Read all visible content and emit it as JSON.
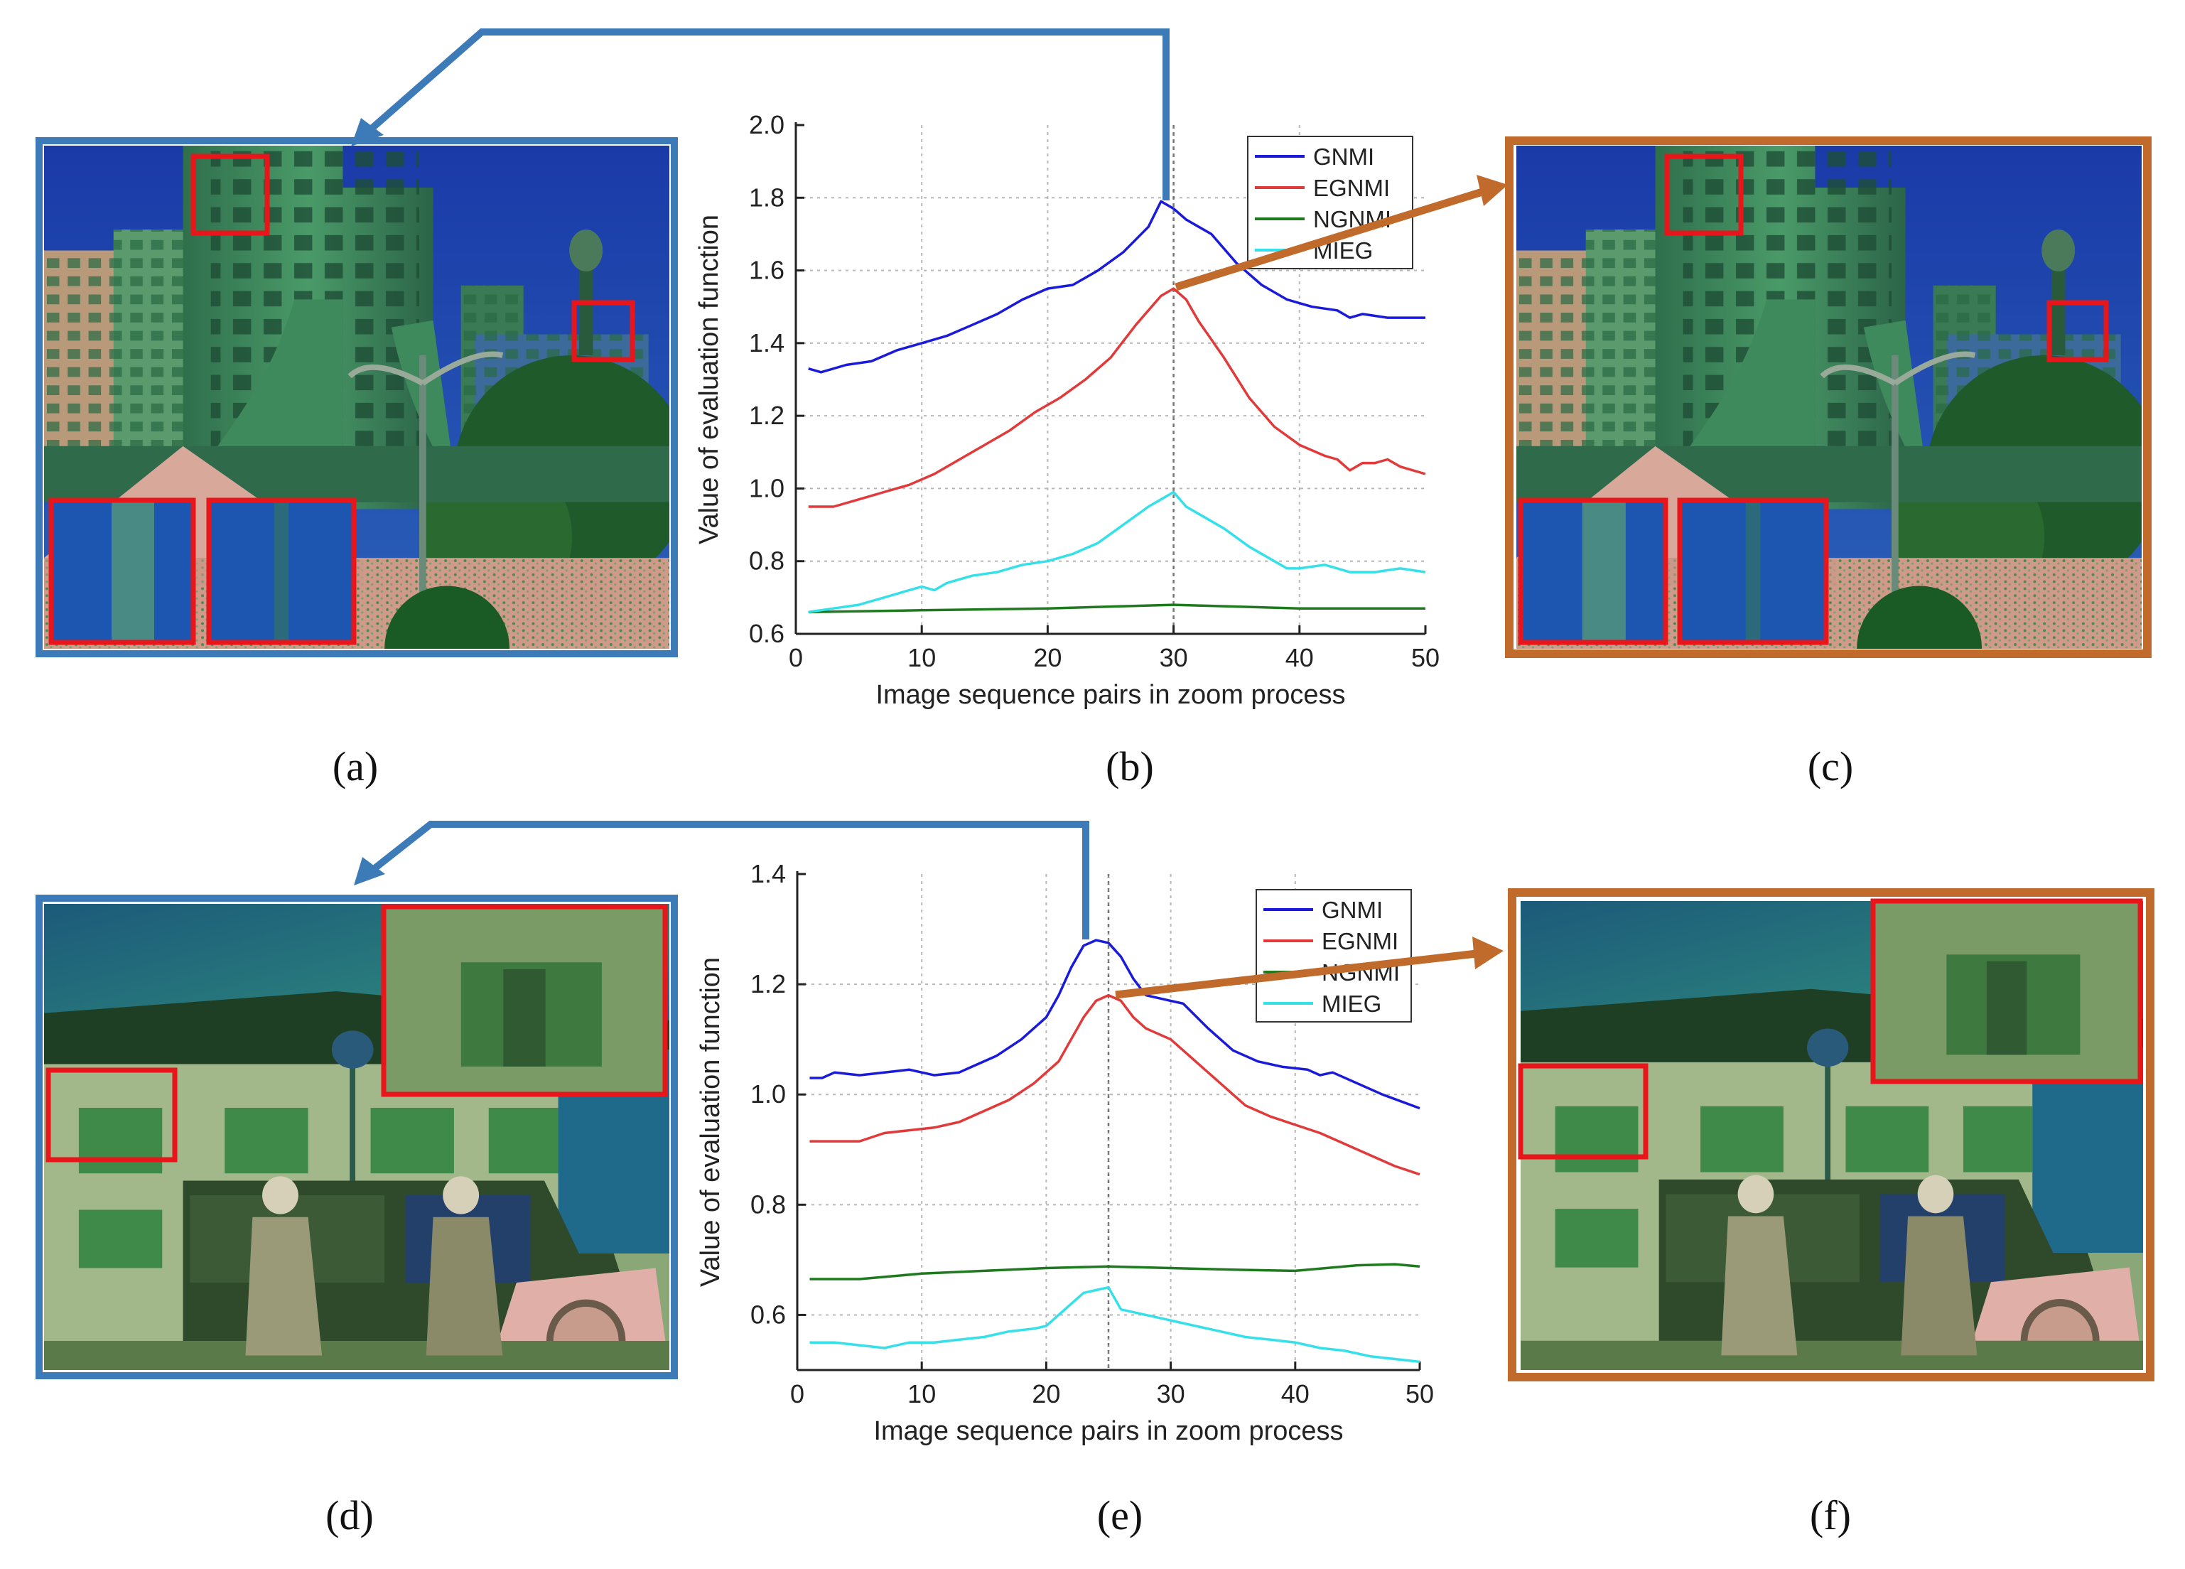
{
  "panels": [
    {
      "id": "a",
      "label": "(a)",
      "kind": "infrared-photo",
      "scene": "building",
      "frame_color": "#3d7ab8"
    },
    {
      "id": "b",
      "label": "(b)",
      "kind": "chart"
    },
    {
      "id": "c",
      "label": "(c)",
      "kind": "infrared-photo",
      "scene": "building",
      "frame_color": "#c06a2b"
    },
    {
      "id": "d",
      "label": "(d)",
      "kind": "infrared-photo",
      "scene": "soldiers",
      "frame_color": "#3d7ab8"
    },
    {
      "id": "e",
      "label": "(e)",
      "kind": "chart"
    },
    {
      "id": "f",
      "label": "(f)",
      "kind": "infrared-photo",
      "scene": "soldiers",
      "frame_color": "#c06a2b"
    }
  ],
  "colors": {
    "blue_frame": "#3d7ab8",
    "orange_frame": "#c06a2b",
    "highlight_box": "#e8151b",
    "series": {
      "GNMI": "#1a1adb",
      "EGNMI": "#e03a3a",
      "NGNMI": "#1f7a1f",
      "MIEG": "#35e0e8"
    }
  },
  "chart_data": [
    {
      "type": "line",
      "panel": "b",
      "xlabel": "Image sequence pairs in zoom process",
      "ylabel": "Value of evaluation function",
      "xlim": [
        0,
        50
      ],
      "ylim": [
        0.6,
        2.0
      ],
      "xticks": [
        0,
        10,
        20,
        30,
        40,
        50
      ],
      "yticks": [
        0.6,
        0.8,
        1.0,
        1.2,
        1.4,
        1.6,
        1.8,
        2.0
      ],
      "grid": true,
      "legend_position": "top-right",
      "marker_x": 30,
      "series": [
        {
          "name": "GNMI",
          "points": [
            [
              1,
              1.33
            ],
            [
              2,
              1.32
            ],
            [
              4,
              1.34
            ],
            [
              6,
              1.35
            ],
            [
              8,
              1.38
            ],
            [
              10,
              1.4
            ],
            [
              12,
              1.42
            ],
            [
              14,
              1.45
            ],
            [
              16,
              1.48
            ],
            [
              18,
              1.52
            ],
            [
              20,
              1.55
            ],
            [
              22,
              1.56
            ],
            [
              24,
              1.6
            ],
            [
              26,
              1.65
            ],
            [
              28,
              1.72
            ],
            [
              29,
              1.79
            ],
            [
              30,
              1.77
            ],
            [
              31,
              1.74
            ],
            [
              32,
              1.72
            ],
            [
              33,
              1.7
            ],
            [
              35,
              1.62
            ],
            [
              37,
              1.56
            ],
            [
              39,
              1.52
            ],
            [
              41,
              1.5
            ],
            [
              43,
              1.49
            ],
            [
              44,
              1.47
            ],
            [
              45,
              1.48
            ],
            [
              47,
              1.47
            ],
            [
              50,
              1.47
            ]
          ]
        },
        {
          "name": "EGNMI",
          "points": [
            [
              1,
              0.95
            ],
            [
              3,
              0.95
            ],
            [
              5,
              0.97
            ],
            [
              7,
              0.99
            ],
            [
              9,
              1.01
            ],
            [
              11,
              1.04
            ],
            [
              13,
              1.08
            ],
            [
              15,
              1.12
            ],
            [
              17,
              1.16
            ],
            [
              19,
              1.21
            ],
            [
              21,
              1.25
            ],
            [
              23,
              1.3
            ],
            [
              25,
              1.36
            ],
            [
              27,
              1.45
            ],
            [
              29,
              1.53
            ],
            [
              30,
              1.55
            ],
            [
              31,
              1.52
            ],
            [
              32,
              1.46
            ],
            [
              34,
              1.36
            ],
            [
              36,
              1.25
            ],
            [
              38,
              1.17
            ],
            [
              40,
              1.12
            ],
            [
              42,
              1.09
            ],
            [
              43,
              1.08
            ],
            [
              44,
              1.05
            ],
            [
              45,
              1.07
            ],
            [
              46,
              1.07
            ],
            [
              47,
              1.08
            ],
            [
              48,
              1.06
            ],
            [
              50,
              1.04
            ]
          ]
        },
        {
          "name": "NGNMI",
          "points": [
            [
              1,
              0.66
            ],
            [
              10,
              0.665
            ],
            [
              20,
              0.67
            ],
            [
              30,
              0.68
            ],
            [
              40,
              0.67
            ],
            [
              50,
              0.67
            ]
          ]
        },
        {
          "name": "MIEG",
          "points": [
            [
              1,
              0.66
            ],
            [
              3,
              0.67
            ],
            [
              5,
              0.68
            ],
            [
              7,
              0.7
            ],
            [
              9,
              0.72
            ],
            [
              10,
              0.73
            ],
            [
              11,
              0.72
            ],
            [
              12,
              0.74
            ],
            [
              14,
              0.76
            ],
            [
              16,
              0.77
            ],
            [
              18,
              0.79
            ],
            [
              20,
              0.8
            ],
            [
              22,
              0.82
            ],
            [
              24,
              0.85
            ],
            [
              26,
              0.9
            ],
            [
              28,
              0.95
            ],
            [
              29,
              0.97
            ],
            [
              30,
              0.99
            ],
            [
              31,
              0.95
            ],
            [
              32,
              0.93
            ],
            [
              34,
              0.89
            ],
            [
              36,
              0.84
            ],
            [
              38,
              0.8
            ],
            [
              39,
              0.78
            ],
            [
              40,
              0.78
            ],
            [
              42,
              0.79
            ],
            [
              44,
              0.77
            ],
            [
              46,
              0.77
            ],
            [
              48,
              0.78
            ],
            [
              50,
              0.77
            ]
          ]
        }
      ]
    },
    {
      "type": "line",
      "panel": "e",
      "xlabel": "Image sequence pairs in zoom process",
      "ylabel": "Value of evaluation function",
      "xlim": [
        0,
        50
      ],
      "ylim": [
        0.5,
        1.4
      ],
      "xticks": [
        0,
        10,
        20,
        30,
        40,
        50
      ],
      "yticks": [
        0.6,
        0.8,
        1.0,
        1.2,
        1.4
      ],
      "grid": true,
      "legend_position": "top-right",
      "marker_x": 25,
      "series": [
        {
          "name": "GNMI",
          "points": [
            [
              1,
              1.03
            ],
            [
              2,
              1.03
            ],
            [
              3,
              1.04
            ],
            [
              5,
              1.035
            ],
            [
              7,
              1.04
            ],
            [
              9,
              1.045
            ],
            [
              11,
              1.035
            ],
            [
              13,
              1.04
            ],
            [
              14,
              1.05
            ],
            [
              16,
              1.07
            ],
            [
              18,
              1.1
            ],
            [
              20,
              1.14
            ],
            [
              21,
              1.18
            ],
            [
              22,
              1.23
            ],
            [
              23,
              1.27
            ],
            [
              24,
              1.28
            ],
            [
              25,
              1.275
            ],
            [
              26,
              1.25
            ],
            [
              27,
              1.21
            ],
            [
              28,
              1.18
            ],
            [
              30,
              1.17
            ],
            [
              31,
              1.165
            ],
            [
              33,
              1.12
            ],
            [
              35,
              1.08
            ],
            [
              37,
              1.06
            ],
            [
              39,
              1.05
            ],
            [
              41,
              1.045
            ],
            [
              42,
              1.035
            ],
            [
              43,
              1.04
            ],
            [
              45,
              1.02
            ],
            [
              47,
              1.0
            ],
            [
              50,
              0.975
            ]
          ]
        },
        {
          "name": "EGNMI",
          "points": [
            [
              1,
              0.915
            ],
            [
              3,
              0.915
            ],
            [
              5,
              0.915
            ],
            [
              7,
              0.93
            ],
            [
              9,
              0.935
            ],
            [
              11,
              0.94
            ],
            [
              13,
              0.95
            ],
            [
              15,
              0.97
            ],
            [
              17,
              0.99
            ],
            [
              19,
              1.02
            ],
            [
              21,
              1.06
            ],
            [
              22,
              1.1
            ],
            [
              23,
              1.14
            ],
            [
              24,
              1.17
            ],
            [
              25,
              1.18
            ],
            [
              26,
              1.17
            ],
            [
              27,
              1.14
            ],
            [
              28,
              1.12
            ],
            [
              30,
              1.1
            ],
            [
              32,
              1.06
            ],
            [
              34,
              1.02
            ],
            [
              36,
              0.98
            ],
            [
              38,
              0.96
            ],
            [
              40,
              0.945
            ],
            [
              42,
              0.93
            ],
            [
              44,
              0.91
            ],
            [
              46,
              0.89
            ],
            [
              48,
              0.87
            ],
            [
              50,
              0.855
            ]
          ]
        },
        {
          "name": "NGNMI",
          "points": [
            [
              1,
              0.665
            ],
            [
              5,
              0.665
            ],
            [
              10,
              0.675
            ],
            [
              15,
              0.68
            ],
            [
              20,
              0.685
            ],
            [
              25,
              0.688
            ],
            [
              30,
              0.685
            ],
            [
              35,
              0.682
            ],
            [
              40,
              0.68
            ],
            [
              45,
              0.69
            ],
            [
              48,
              0.692
            ],
            [
              50,
              0.688
            ]
          ]
        },
        {
          "name": "MIEG",
          "points": [
            [
              1,
              0.55
            ],
            [
              3,
              0.55
            ],
            [
              5,
              0.545
            ],
            [
              7,
              0.54
            ],
            [
              9,
              0.55
            ],
            [
              11,
              0.55
            ],
            [
              13,
              0.555
            ],
            [
              15,
              0.56
            ],
            [
              17,
              0.57
            ],
            [
              19,
              0.575
            ],
            [
              20,
              0.58
            ],
            [
              21,
              0.6
            ],
            [
              22,
              0.62
            ],
            [
              23,
              0.64
            ],
            [
              24,
              0.645
            ],
            [
              25,
              0.65
            ],
            [
              26,
              0.61
            ],
            [
              28,
              0.6
            ],
            [
              30,
              0.59
            ],
            [
              32,
              0.58
            ],
            [
              34,
              0.57
            ],
            [
              36,
              0.56
            ],
            [
              38,
              0.555
            ],
            [
              40,
              0.55
            ],
            [
              42,
              0.54
            ],
            [
              44,
              0.535
            ],
            [
              46,
              0.525
            ],
            [
              48,
              0.52
            ],
            [
              50,
              0.515
            ]
          ]
        }
      ]
    }
  ]
}
